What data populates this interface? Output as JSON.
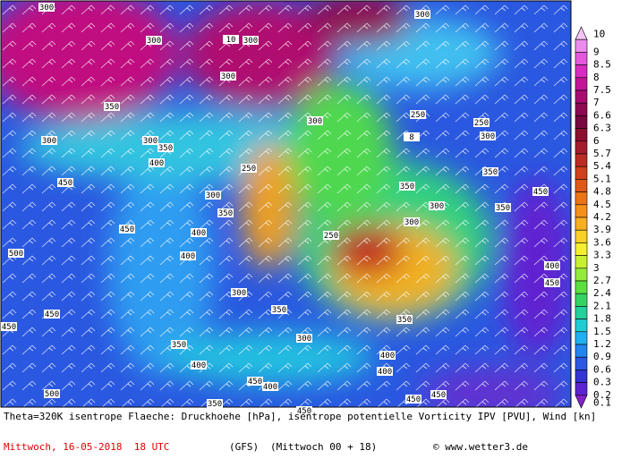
{
  "map": {
    "title": "Theta=320K isentrope Flaeche: Druckhoehe [hPa], isentrope potentielle Vorticity IPV [PVU], Wind [kn]",
    "date": "Mittwoch, 16-05-2018  18 UTC",
    "model": "(GFS)",
    "run": "(Mittwoch 00 + 18)",
    "credit": "© www.wetter3.de",
    "legend": {
      "levels": [
        10,
        9,
        8.5,
        8,
        7.5,
        7,
        6.6,
        6.3,
        6,
        5.7,
        5.4,
        5.1,
        4.8,
        4.5,
        4.2,
        3.9,
        3.6,
        3.3,
        3,
        2.7,
        2.4,
        2.1,
        1.8,
        1.5,
        1.2,
        0.9,
        0.6,
        0.3,
        0.2,
        0.1
      ],
      "colors": [
        "#f4c4f4",
        "#ec8cec",
        "#e458dc",
        "#d82cc0",
        "#c41498",
        "#a80c70",
        "#8c0850",
        "#780840",
        "#8c1030",
        "#a41c2c",
        "#bc2c24",
        "#d0401c",
        "#e05818",
        "#ec7414",
        "#f49018",
        "#f8b020",
        "#f8d028",
        "#f4f030",
        "#c8f030",
        "#94ec38",
        "#5ce040",
        "#34d464",
        "#24d09c",
        "#20ccd0",
        "#20b0f0",
        "#2484f0",
        "#2c58e4",
        "#3434d4",
        "#5c24d0",
        "#8420c8"
      ]
    },
    "contour_labels": [
      300,
      300,
      300,
      300,
      300,
      350,
      300,
      300,
      350,
      400,
      450,
      250,
      300,
      350,
      450,
      400,
      400,
      500,
      300,
      350,
      450,
      450,
      350,
      300,
      400,
      450,
      400,
      500,
      350,
      450,
      250,
      250,
      300,
      350,
      350,
      350,
      450,
      300,
      300,
      250,
      350,
      400,
      400,
      450,
      450,
      400,
      450,
      10,
      8,
      300
    ]
  }
}
